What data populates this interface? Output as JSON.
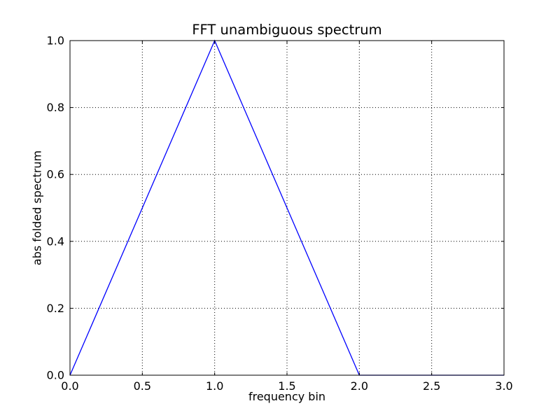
{
  "figure": {
    "background": "#ffffff",
    "text_color": "#000000"
  },
  "chart_data": {
    "type": "line",
    "title": "FFT unambiguous spectrum",
    "xlabel": "frequency bin",
    "ylabel": "abs folded spectrum",
    "xlim": [
      0.0,
      3.0
    ],
    "ylim": [
      0.0,
      1.0
    ],
    "xtick_labels": [
      "0.0",
      "0.5",
      "1.0",
      "1.5",
      "2.0",
      "2.5",
      "3.0"
    ],
    "ytick_labels": [
      "0.0",
      "0.2",
      "0.4",
      "0.6",
      "0.8",
      "1.0"
    ],
    "grid": true,
    "grid_style": "dotted",
    "grid_color": "#000000",
    "spine_color": "#000000",
    "legend_position": "none",
    "series": [
      {
        "name": "abs folded spectrum",
        "color": "#0000ff",
        "x": [
          0.0,
          1.0,
          2.0,
          3.0
        ],
        "y": [
          0.0,
          1.0,
          0.0,
          0.0
        ]
      }
    ]
  }
}
